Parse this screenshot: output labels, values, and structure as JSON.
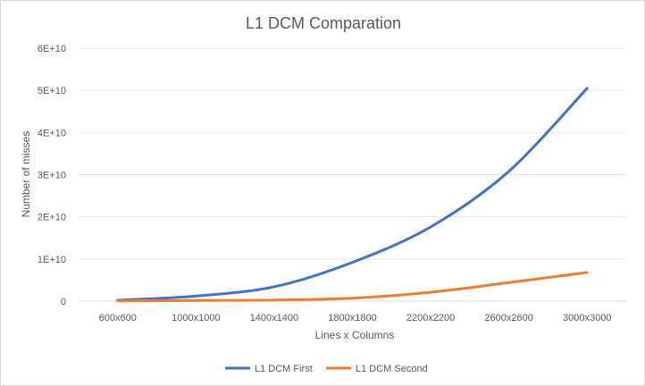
{
  "chart_data": {
    "type": "line",
    "title": "L1 DCM Comparation",
    "xlabel": "Lines x Columns",
    "ylabel": "Number of misses",
    "categories": [
      "600x600",
      "1000x1000",
      "1400x1400",
      "1800x1800",
      "2200x2200",
      "2600x2600",
      "3000x3000"
    ],
    "y_ticks": [
      "0",
      "1E+10",
      "2E+10",
      "3E+10",
      "4E+10",
      "5E+10",
      "6E+10"
    ],
    "ylim": [
      0,
      60000000000
    ],
    "grid": true,
    "legend_position": "bottom",
    "series": [
      {
        "name": "L1 DCM First",
        "color": "#4472C4",
        "values": [
          200000000,
          1200000000,
          3400000000,
          9200000000,
          17600000000,
          30800000000,
          50500000000
        ]
      },
      {
        "name": "L1 DCM Second",
        "color": "#ED7D31",
        "values": [
          50000000,
          150000000,
          250000000,
          700000000,
          2100000000,
          4400000000,
          6800000000
        ]
      }
    ]
  }
}
